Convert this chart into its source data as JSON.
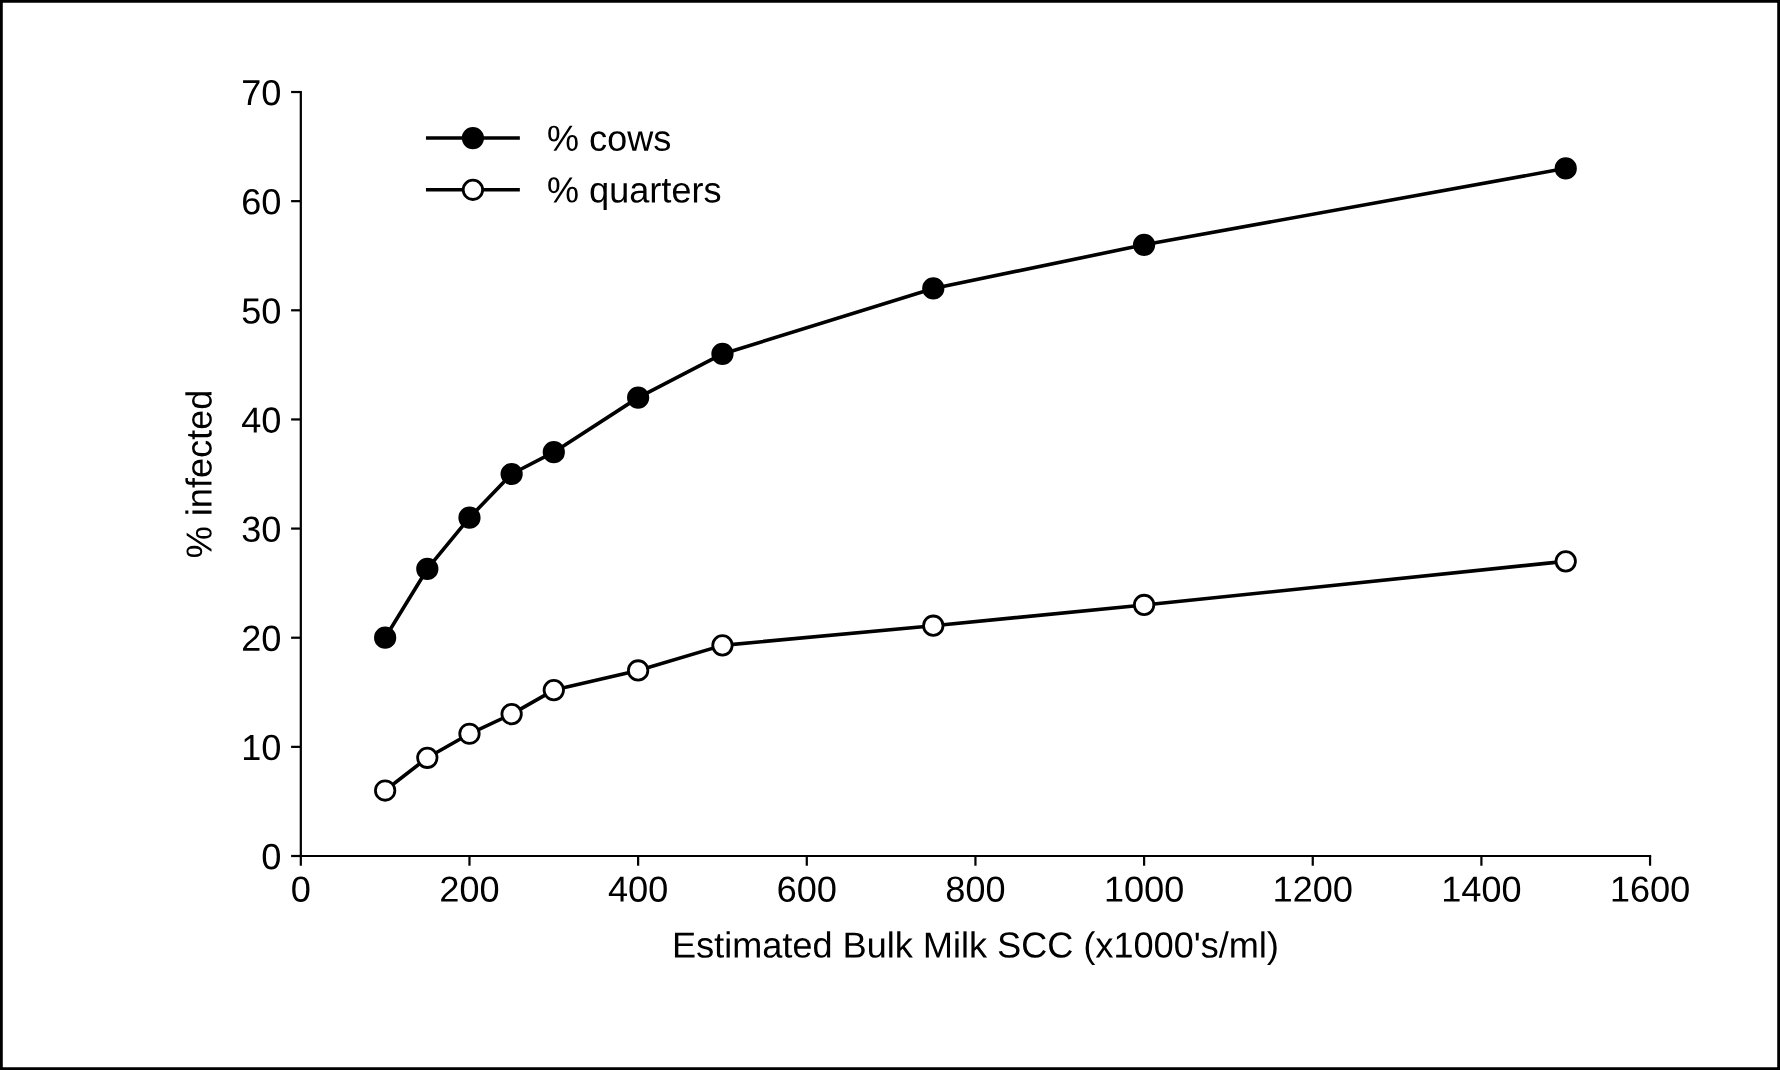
{
  "chart_data": {
    "type": "line",
    "xlabel": "Estimated Bulk Milk SCC (x1000's/ml)",
    "ylabel": "% infected",
    "x": [
      100,
      150,
      200,
      250,
      300,
      400,
      500,
      750,
      1000,
      1500
    ],
    "series": [
      {
        "name": "% cows",
        "color": "#000000",
        "marker": "circle",
        "values": [
          20,
          26.3,
          31,
          35,
          37,
          42,
          46,
          52,
          56,
          63
        ]
      },
      {
        "name": "% quarters",
        "color": "#000000",
        "marker": "circle",
        "values": [
          6,
          9,
          11.2,
          13,
          15.2,
          17,
          19.3,
          21.1,
          23,
          27
        ]
      }
    ],
    "xlim": [
      0,
      1600
    ],
    "xticks": [
      0,
      200,
      400,
      600,
      800,
      1000,
      1200,
      1400,
      1600
    ],
    "ylim": [
      0,
      70
    ],
    "yticks": [
      0,
      10,
      20,
      30,
      40,
      50,
      60,
      70
    ],
    "grid": false,
    "legend": "top left",
    "line_style": "solid"
  }
}
